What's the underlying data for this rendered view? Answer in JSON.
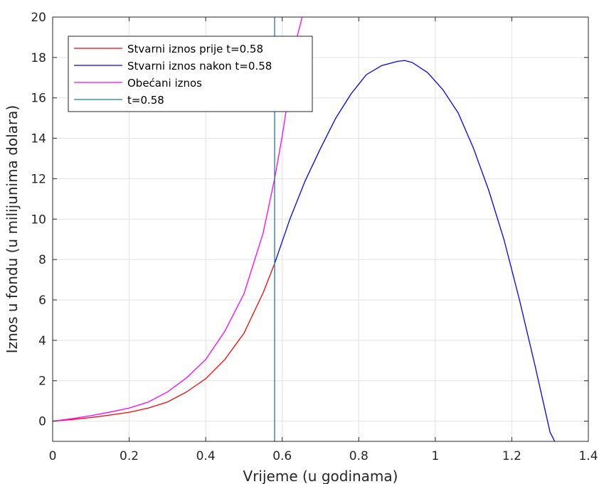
{
  "chart_data": {
    "type": "line",
    "title": "",
    "xlabel": "Vrijeme (u godinama)",
    "ylabel": "Iznos u fondu (u milijunima dolara)",
    "xlim": [
      0,
      1.4
    ],
    "ylim": [
      -1,
      20
    ],
    "xticks": [
      0,
      0.2,
      0.4,
      0.6,
      0.8,
      1,
      1.2,
      1.4
    ],
    "xtick_labels": [
      "0",
      "0.2",
      "0.4",
      "0.6",
      "0.8",
      "1",
      "1.2",
      "1.4"
    ],
    "yticks": [
      0,
      2,
      4,
      6,
      8,
      10,
      12,
      14,
      16,
      18,
      20
    ],
    "ytick_labels": [
      "0",
      "2",
      "4",
      "6",
      "8",
      "10",
      "12",
      "14",
      "16",
      "18",
      "20"
    ],
    "grid": true,
    "legend_position": "top-left",
    "series": [
      {
        "name": "Stvarni iznos prije t=0.58",
        "color": "#ff0000",
        "x": [
          0,
          0.05,
          0.1,
          0.15,
          0.2,
          0.25,
          0.3,
          0.35,
          0.4,
          0.45,
          0.5,
          0.55,
          0.58
        ],
        "y": [
          0,
          0.08,
          0.18,
          0.3,
          0.44,
          0.65,
          0.95,
          1.45,
          2.1,
          3.05,
          4.35,
          6.35,
          7.8
        ]
      },
      {
        "name": "Stvarni iznos nakon t=0.58",
        "color": "#0000ff",
        "x": [
          0.58,
          0.62,
          0.66,
          0.7,
          0.74,
          0.78,
          0.82,
          0.86,
          0.9,
          0.92,
          0.94,
          0.98,
          1.02,
          1.06,
          1.1,
          1.14,
          1.18,
          1.22,
          1.26,
          1.3,
          1.312
        ],
        "y": [
          7.8,
          10.0,
          11.9,
          13.5,
          15.0,
          16.2,
          17.15,
          17.6,
          17.8,
          17.85,
          17.75,
          17.25,
          16.4,
          15.25,
          13.5,
          11.4,
          8.95,
          6.0,
          2.8,
          -0.55,
          -1.0
        ]
      },
      {
        "name": "Obećani iznos",
        "color": "#ff00ff",
        "x": [
          0,
          0.05,
          0.1,
          0.15,
          0.2,
          0.25,
          0.3,
          0.35,
          0.4,
          0.45,
          0.5,
          0.55,
          0.58,
          0.6,
          0.62,
          0.64,
          0.652
        ],
        "y": [
          0,
          0.12,
          0.27,
          0.45,
          0.65,
          0.95,
          1.45,
          2.15,
          3.05,
          4.45,
          6.3,
          9.3,
          12.0,
          14.1,
          16.6,
          19.1,
          20.0
        ]
      },
      {
        "name": "t=0.58",
        "color": "#1f77b4",
        "x": [
          0.58,
          0.58
        ],
        "y": [
          -1,
          20
        ]
      }
    ]
  }
}
